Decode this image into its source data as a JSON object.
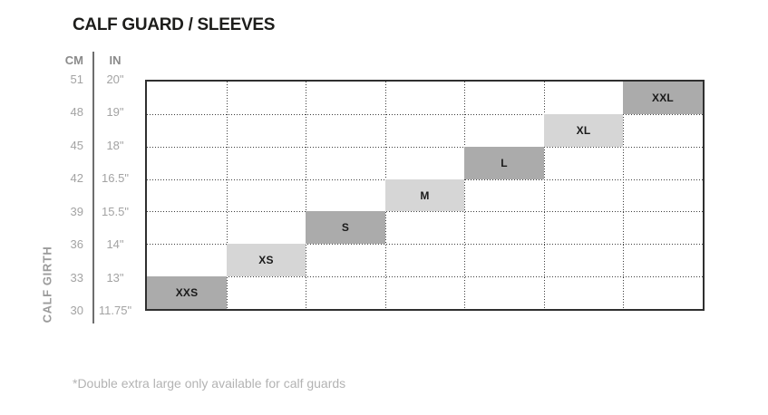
{
  "title": "CALF GUARD / SLEEVES",
  "footnote": "*Double extra large only available for calf guards",
  "axis": {
    "cm_header": "CM",
    "in_header": "IN",
    "ylabel": "CALF GIRTH"
  },
  "chart_data": {
    "type": "heatmap",
    "title": "CALF GUARD / SLEEVES",
    "ylabel": "CALF GIRTH",
    "y_ticks_cm": [
      "51",
      "48",
      "45",
      "42",
      "39",
      "36",
      "33",
      "30"
    ],
    "y_ticks_in": [
      "20\"",
      "19\"",
      "18\"",
      "16.5\"",
      "15.5\"",
      "14\"",
      "13\"",
      "11.75\""
    ],
    "grid": {
      "rows": 7,
      "cols": 7
    },
    "sizes": [
      {
        "label": "XXS",
        "cm_range": [
          30,
          33
        ],
        "in_range": [
          "11.75\"",
          "13\""
        ],
        "row": 6,
        "col": 0,
        "shade": "dark"
      },
      {
        "label": "XS",
        "cm_range": [
          33,
          36
        ],
        "in_range": [
          "13\"",
          "14\""
        ],
        "row": 5,
        "col": 1,
        "shade": "light"
      },
      {
        "label": "S",
        "cm_range": [
          36,
          39
        ],
        "in_range": [
          "14\"",
          "15.5\""
        ],
        "row": 4,
        "col": 2,
        "shade": "dark"
      },
      {
        "label": "M",
        "cm_range": [
          39,
          42
        ],
        "in_range": [
          "15.5\"",
          "16.5\""
        ],
        "row": 3,
        "col": 3,
        "shade": "light"
      },
      {
        "label": "L",
        "cm_range": [
          42,
          45
        ],
        "in_range": [
          "16.5\"",
          "18\""
        ],
        "row": 2,
        "col": 4,
        "shade": "dark"
      },
      {
        "label": "XL",
        "cm_range": [
          45,
          48
        ],
        "in_range": [
          "18\"",
          "19\""
        ],
        "row": 1,
        "col": 5,
        "shade": "light"
      },
      {
        "label": "XXL",
        "cm_range": [
          48,
          51
        ],
        "in_range": [
          "19\"",
          "20\""
        ],
        "row": 0,
        "col": 6,
        "shade": "dark"
      }
    ],
    "colors": {
      "dark": "#ababab",
      "light": "#d6d6d6"
    },
    "legend_position": "none",
    "grid_lines": "dotted"
  }
}
